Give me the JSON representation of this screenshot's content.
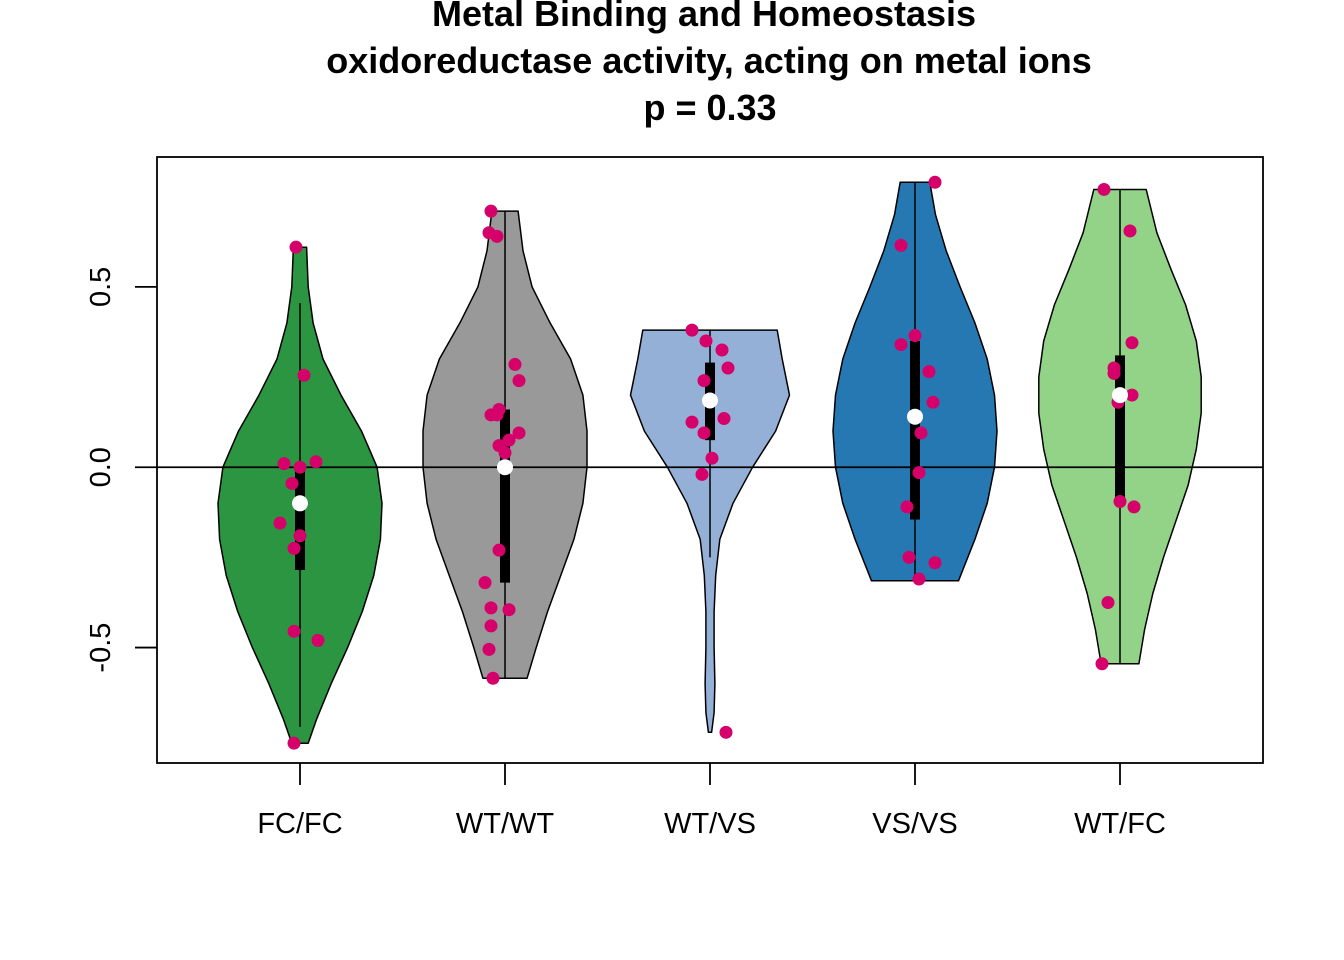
{
  "chart_data": {
    "type": "violin",
    "title_lines": [
      "Metal Binding and Homeostasis",
      "oxidoreductase activity, acting on metal ions",
      "p = 0.33"
    ],
    "xlabel": "",
    "ylabel": "",
    "categories": [
      "FC/FC",
      "WT/WT",
      "WT/VS",
      "VS/VS",
      "WT/FC"
    ],
    "ylim": [
      -0.82,
      0.86
    ],
    "yticks": [
      {
        "value": -0.5,
        "label": "-0.5"
      },
      {
        "value": 0.0,
        "label": "0.0"
      },
      {
        "value": 0.5,
        "label": "0.5"
      }
    ],
    "reference_line": 0.0,
    "point_color": "#D6006B",
    "median_color": "#FFFFFF",
    "series": [
      {
        "category": "FC/FC",
        "fill": "#2B9542",
        "min": -0.765,
        "max": 0.61,
        "q1": -0.285,
        "median": -0.1,
        "q3": 0.0,
        "whisker_low": -0.72,
        "whisker_high": 0.455,
        "profile": [
          [
            -0.765,
            0.1
          ],
          [
            -0.7,
            0.2
          ],
          [
            -0.6,
            0.38
          ],
          [
            -0.5,
            0.58
          ],
          [
            -0.4,
            0.76
          ],
          [
            -0.3,
            0.9
          ],
          [
            -0.2,
            0.98
          ],
          [
            -0.1,
            1.0
          ],
          [
            0.0,
            0.94
          ],
          [
            0.1,
            0.75
          ],
          [
            0.2,
            0.5
          ],
          [
            0.3,
            0.28
          ],
          [
            0.4,
            0.16
          ],
          [
            0.5,
            0.1
          ],
          [
            0.61,
            0.08
          ]
        ],
        "points": [
          [
            -0.02,
            0.61
          ],
          [
            0.02,
            0.255
          ],
          [
            -0.08,
            0.01
          ],
          [
            0.08,
            0.015
          ],
          [
            0.0,
            0.0
          ],
          [
            -0.04,
            -0.045
          ],
          [
            -0.1,
            -0.155
          ],
          [
            0.0,
            -0.19
          ],
          [
            -0.03,
            -0.225
          ],
          [
            -0.03,
            -0.455
          ],
          [
            0.09,
            -0.48
          ],
          [
            -0.03,
            -0.765
          ]
        ]
      },
      {
        "category": "WT/WT",
        "fill": "#999999",
        "min": -0.585,
        "max": 0.71,
        "q1": -0.32,
        "median": 0.0,
        "q3": 0.16,
        "whisker_low": -0.585,
        "whisker_high": 0.71,
        "profile": [
          [
            -0.585,
            0.27
          ],
          [
            -0.5,
            0.38
          ],
          [
            -0.4,
            0.52
          ],
          [
            -0.3,
            0.68
          ],
          [
            -0.2,
            0.84
          ],
          [
            -0.1,
            0.95
          ],
          [
            0.0,
            1.0
          ],
          [
            0.1,
            1.0
          ],
          [
            0.2,
            0.95
          ],
          [
            0.3,
            0.8
          ],
          [
            0.4,
            0.55
          ],
          [
            0.5,
            0.33
          ],
          [
            0.6,
            0.22
          ],
          [
            0.71,
            0.16
          ]
        ],
        "points": [
          [
            -0.07,
            0.71
          ],
          [
            -0.08,
            0.65
          ],
          [
            -0.04,
            0.64
          ],
          [
            0.05,
            0.285
          ],
          [
            0.07,
            0.24
          ],
          [
            -0.03,
            0.16
          ],
          [
            -0.07,
            0.145
          ],
          [
            -0.04,
            0.145
          ],
          [
            0.07,
            0.095
          ],
          [
            0.02,
            0.075
          ],
          [
            -0.03,
            0.06
          ],
          [
            0.0,
            0.04
          ],
          [
            0.0,
            0.0
          ],
          [
            -0.03,
            -0.23
          ],
          [
            -0.1,
            -0.32
          ],
          [
            -0.07,
            -0.39
          ],
          [
            0.02,
            -0.395
          ],
          [
            -0.07,
            -0.44
          ],
          [
            -0.08,
            -0.505
          ],
          [
            -0.06,
            -0.585
          ]
        ]
      },
      {
        "category": "WT/VS",
        "fill": "#95B0D7",
        "min": -0.735,
        "max": 0.38,
        "q1": 0.075,
        "median": 0.185,
        "q3": 0.29,
        "whisker_low": -0.25,
        "whisker_high": 0.38,
        "profile": [
          [
            -0.735,
            0.02
          ],
          [
            -0.68,
            0.05
          ],
          [
            -0.6,
            0.06
          ],
          [
            -0.5,
            0.05
          ],
          [
            -0.4,
            0.05
          ],
          [
            -0.3,
            0.07
          ],
          [
            -0.2,
            0.12
          ],
          [
            -0.1,
            0.28
          ],
          [
            0.0,
            0.52
          ],
          [
            0.1,
            0.8
          ],
          [
            0.2,
            0.97
          ],
          [
            0.3,
            0.88
          ],
          [
            0.38,
            0.82
          ]
        ],
        "points": [
          [
            -0.09,
            0.38
          ],
          [
            -0.02,
            0.35
          ],
          [
            0.06,
            0.325
          ],
          [
            0.09,
            0.275
          ],
          [
            -0.03,
            0.24
          ],
          [
            0.07,
            0.135
          ],
          [
            -0.09,
            0.125
          ],
          [
            -0.03,
            0.095
          ],
          [
            0.01,
            0.025
          ],
          [
            -0.04,
            -0.02
          ],
          [
            0.08,
            -0.735
          ]
        ]
      },
      {
        "category": "VS/VS",
        "fill": "#2678B2",
        "min": -0.315,
        "max": 0.79,
        "q1": -0.145,
        "median": 0.14,
        "q3": 0.35,
        "whisker_low": -0.3,
        "whisker_high": 0.79,
        "profile": [
          [
            -0.315,
            0.53
          ],
          [
            -0.2,
            0.73
          ],
          [
            -0.1,
            0.88
          ],
          [
            0.0,
            0.97
          ],
          [
            0.1,
            1.0
          ],
          [
            0.2,
            0.97
          ],
          [
            0.3,
            0.88
          ],
          [
            0.4,
            0.73
          ],
          [
            0.5,
            0.55
          ],
          [
            0.6,
            0.38
          ],
          [
            0.7,
            0.25
          ],
          [
            0.79,
            0.18
          ]
        ],
        "points": [
          [
            0.1,
            0.79
          ],
          [
            -0.07,
            0.615
          ],
          [
            0.0,
            0.365
          ],
          [
            -0.07,
            0.34
          ],
          [
            0.07,
            0.265
          ],
          [
            0.09,
            0.18
          ],
          [
            0.03,
            0.095
          ],
          [
            0.02,
            -0.015
          ],
          [
            -0.04,
            -0.11
          ],
          [
            -0.03,
            -0.25
          ],
          [
            0.1,
            -0.265
          ],
          [
            0.02,
            -0.31
          ]
        ]
      },
      {
        "category": "WT/FC",
        "fill": "#93D388",
        "min": -0.545,
        "max": 0.77,
        "q1": -0.09,
        "median": 0.2,
        "q3": 0.31,
        "whisker_low": -0.545,
        "whisker_high": 0.77,
        "profile": [
          [
            -0.545,
            0.23
          ],
          [
            -0.45,
            0.3
          ],
          [
            -0.35,
            0.4
          ],
          [
            -0.25,
            0.53
          ],
          [
            -0.15,
            0.68
          ],
          [
            -0.05,
            0.83
          ],
          [
            0.05,
            0.93
          ],
          [
            0.15,
            0.99
          ],
          [
            0.25,
            0.99
          ],
          [
            0.35,
            0.93
          ],
          [
            0.45,
            0.8
          ],
          [
            0.55,
            0.62
          ],
          [
            0.65,
            0.45
          ],
          [
            0.77,
            0.32
          ]
        ],
        "points": [
          [
            -0.08,
            0.77
          ],
          [
            0.05,
            0.655
          ],
          [
            0.06,
            0.345
          ],
          [
            -0.03,
            0.275
          ],
          [
            -0.03,
            0.26
          ],
          [
            0.06,
            0.2
          ],
          [
            -0.01,
            0.18
          ],
          [
            0.0,
            -0.095
          ],
          [
            0.07,
            -0.11
          ],
          [
            -0.06,
            -0.375
          ],
          [
            -0.09,
            -0.545
          ]
        ]
      }
    ]
  }
}
